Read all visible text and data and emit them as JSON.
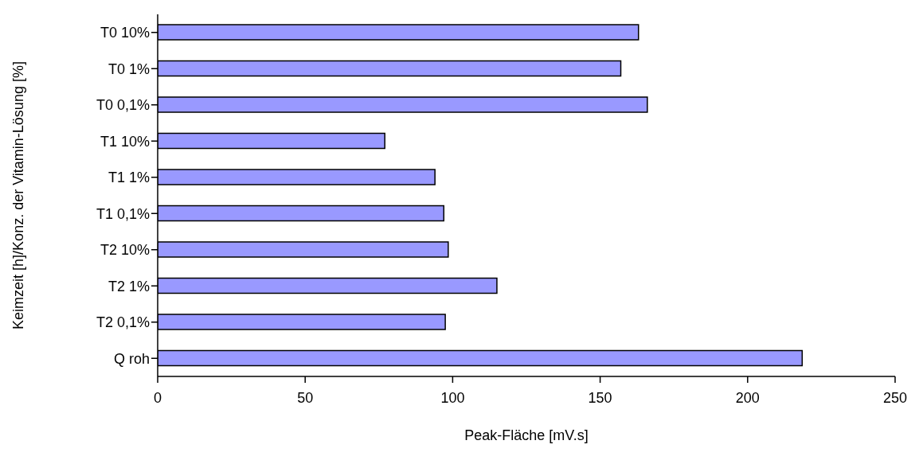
{
  "chart_data": {
    "type": "bar",
    "orientation": "horizontal",
    "xlabel": "Peak-Fläche [mV.s]",
    "ylabel": "Keimzeit [h]/Konz. der Vitamin-Lösung [%]",
    "categories": [
      "T0 10%",
      "T0 1%",
      "T0 0,1%",
      "T1 10%",
      "T1 1%",
      "T1 0,1%",
      "T2 10%",
      "T2 1%",
      "T2 0,1%",
      "Q roh"
    ],
    "values": [
      163,
      157,
      166,
      77,
      94,
      97,
      98.5,
      115,
      97.5,
      218.5
    ],
    "color": "#9999ff",
    "xlim": [
      0,
      250
    ],
    "xticks": [
      0,
      50,
      100,
      150,
      200,
      250
    ],
    "grid": false,
    "legend": false
  }
}
